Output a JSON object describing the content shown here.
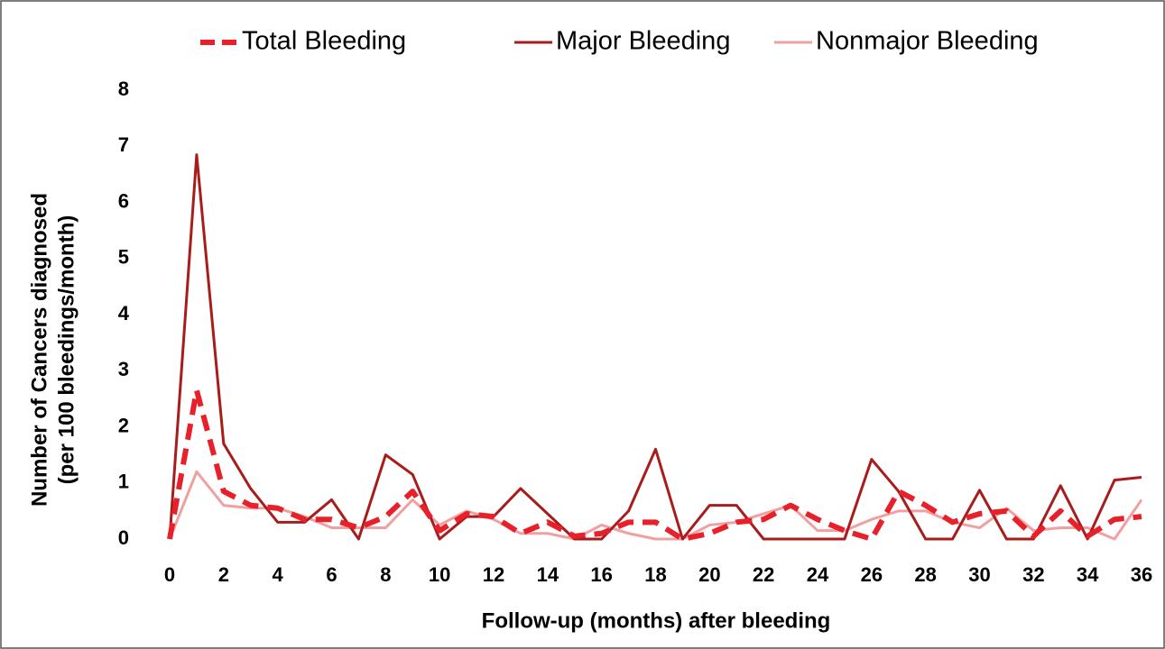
{
  "chart_data": {
    "type": "line",
    "x_label": "Follow-up (months) after bleeding",
    "y_label": [
      "Number of Cancers diagnosed",
      "(per 100 bleedings/month)"
    ],
    "x": [
      0,
      1,
      2,
      3,
      4,
      5,
      6,
      7,
      8,
      9,
      10,
      11,
      12,
      13,
      14,
      15,
      16,
      17,
      18,
      19,
      20,
      21,
      22,
      23,
      24,
      25,
      26,
      27,
      28,
      29,
      30,
      31,
      32,
      33,
      34,
      35,
      36
    ],
    "xlim": [
      0,
      36
    ],
    "xticks": [
      0,
      2,
      4,
      6,
      8,
      10,
      12,
      14,
      16,
      18,
      20,
      22,
      24,
      26,
      28,
      30,
      32,
      34,
      36
    ],
    "ylim": [
      0,
      8
    ],
    "yticks": [
      0,
      1,
      2,
      3,
      4,
      5,
      6,
      7,
      8
    ],
    "legend": "top",
    "series": [
      {
        "name": "Total Bleeding",
        "color": "#e8202a",
        "dashed": true,
        "values": [
          0,
          2.65,
          0.85,
          0.6,
          0.55,
          0.35,
          0.35,
          0.2,
          0.4,
          0.85,
          0.15,
          0.45,
          0.4,
          0.1,
          0.3,
          0.05,
          0.1,
          0.3,
          0.3,
          0,
          0.1,
          0.3,
          0.35,
          0.6,
          0.35,
          0.15,
          0,
          0.85,
          0.6,
          0.3,
          0.45,
          0.5,
          0.05,
          0.5,
          0.05,
          0.35,
          0.4
        ]
      },
      {
        "name": "Major Bleeding",
        "color": "#a81c1c",
        "dashed": false,
        "values": [
          0,
          6.85,
          1.7,
          0.9,
          0.3,
          0.3,
          0.7,
          0,
          1.5,
          1.15,
          0,
          0.4,
          0.4,
          0.9,
          0.45,
          0,
          0,
          0.5,
          1.6,
          0,
          0.6,
          0.6,
          0,
          0,
          0,
          0,
          1.42,
          0.85,
          0,
          0,
          0.87,
          0,
          0,
          0.95,
          0,
          1.05,
          1.1
        ]
      },
      {
        "name": "Nonmajor Bleeding",
        "color": "#f0a0a0",
        "dashed": false,
        "values": [
          0,
          1.2,
          0.6,
          0.55,
          0.55,
          0.4,
          0.2,
          0.2,
          0.2,
          0.7,
          0.25,
          0.5,
          0.35,
          0.1,
          0.1,
          0,
          0.25,
          0.1,
          0,
          0,
          0.25,
          0.3,
          0.45,
          0.6,
          0.15,
          0.15,
          0.35,
          0.5,
          0.5,
          0.3,
          0.2,
          0.55,
          0.15,
          0.2,
          0.2,
          0,
          0.7
        ]
      }
    ]
  }
}
